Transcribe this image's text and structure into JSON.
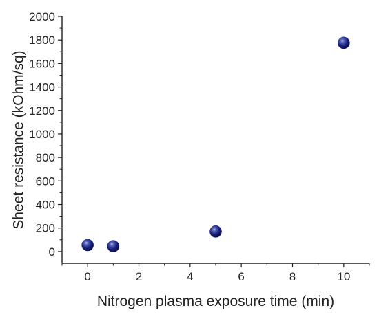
{
  "chart_data": {
    "type": "scatter",
    "xlabel": "Nitrogen plasma exposure time (min)",
    "ylabel": "Sheet resistance (kOhm/sq)",
    "xlim": [
      -1,
      11
    ],
    "ylim": [
      -100,
      2000
    ],
    "x_ticks": [
      0,
      2,
      4,
      6,
      8,
      10
    ],
    "y_ticks": [
      0,
      200,
      400,
      600,
      800,
      1000,
      1200,
      1400,
      1600,
      1800,
      2000
    ],
    "x_tick_labels": [
      "0",
      "2",
      "4",
      "6",
      "8",
      "10"
    ],
    "y_tick_labels": [
      "0",
      "200",
      "400",
      "600",
      "800",
      "1000",
      "1200",
      "1400",
      "1600",
      "1800",
      "2000"
    ],
    "grid": false,
    "marker_color": "#1a237e",
    "points": [
      {
        "x": 0,
        "y": 55
      },
      {
        "x": 1,
        "y": 45
      },
      {
        "x": 5,
        "y": 170
      },
      {
        "x": 10,
        "y": 1775
      }
    ]
  }
}
